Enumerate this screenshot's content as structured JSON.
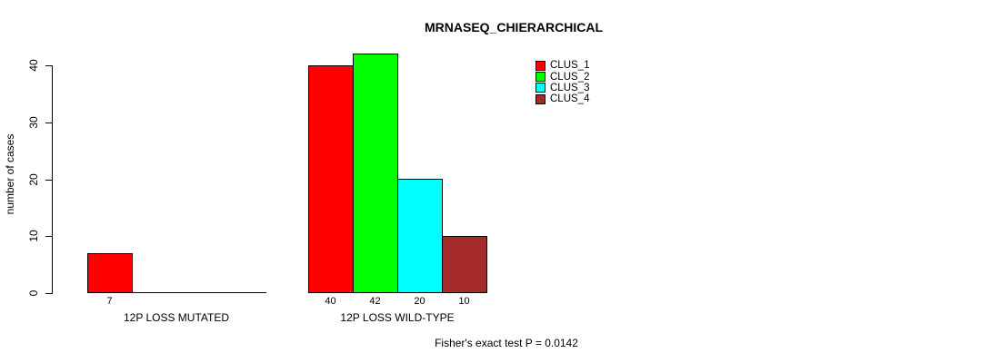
{
  "chart_data": {
    "type": "bar",
    "title": "MRNASEQ_CHIERARCHICAL",
    "ylabel": "number of cases",
    "xlabel": "",
    "ylim": [
      0,
      40
    ],
    "yticks": [
      0,
      10,
      20,
      30,
      40
    ],
    "grid": false,
    "legend_position": "top-right",
    "categories": [
      "12P LOSS MUTATED",
      "12P LOSS WILD-TYPE"
    ],
    "series": [
      {
        "name": "CLUS_1",
        "color": "#ff0000",
        "values": [
          7,
          40
        ]
      },
      {
        "name": "CLUS_2",
        "color": "#00ff00",
        "values": [
          0,
          42
        ]
      },
      {
        "name": "CLUS_3",
        "color": "#00ffff",
        "values": [
          0,
          20
        ]
      },
      {
        "name": "CLUS_4",
        "color": "#a52a2a",
        "values": [
          0,
          10
        ]
      }
    ],
    "value_labels": [
      [
        "7",
        "",
        "",
        ""
      ],
      [
        "40",
        "42",
        "20",
        "10"
      ]
    ],
    "annotation": "Fisher's exact test P = 0.0142"
  },
  "colors": {
    "axis": "#000000",
    "bar_border": "#000000",
    "background": "#ffffff"
  }
}
